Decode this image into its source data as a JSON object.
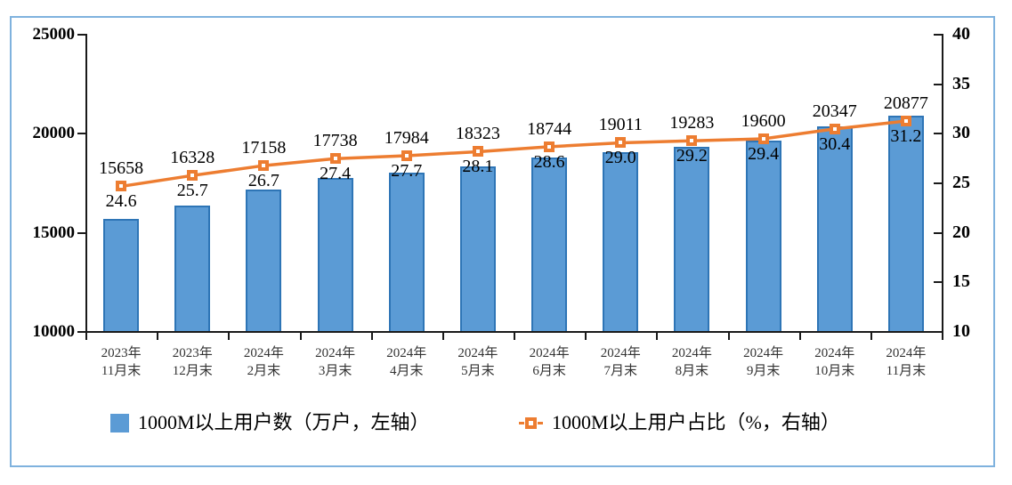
{
  "frame": {
    "border_color": "#7FB2DE",
    "background": "#ffffff"
  },
  "chart_data": {
    "type": "bar+line",
    "title": "",
    "categories": [
      [
        "2023年",
        "11月末"
      ],
      [
        "2023年",
        "12月末"
      ],
      [
        "2024年",
        "2月末"
      ],
      [
        "2024年",
        "3月末"
      ],
      [
        "2024年",
        "4月末"
      ],
      [
        "2024年",
        "5月末"
      ],
      [
        "2024年",
        "6月末"
      ],
      [
        "2024年",
        "7月末"
      ],
      [
        "2024年",
        "8月末"
      ],
      [
        "2024年",
        "9月末"
      ],
      [
        "2024年",
        "10月末"
      ],
      [
        "2024年",
        "11月末"
      ]
    ],
    "series": [
      {
        "name": "1000M以上用户数（万户，左轴）",
        "type": "bar",
        "axis": "left",
        "values": [
          15658,
          16328,
          17158,
          17738,
          17984,
          18323,
          18744,
          19011,
          19283,
          19600,
          20347,
          20877
        ],
        "labels": [
          "15658",
          "16328",
          "17158",
          "17738",
          "17984",
          "18323",
          "18744",
          "19011",
          "19283",
          "19600",
          "20347",
          "20877"
        ],
        "color": "#5B9BD5",
        "border_color": "#2E75B6"
      },
      {
        "name": "1000M以上用户占比（%，右轴）",
        "type": "line",
        "axis": "right",
        "values": [
          24.6,
          25.7,
          26.7,
          27.4,
          27.7,
          28.1,
          28.6,
          29.0,
          29.2,
          29.4,
          30.4,
          31.2
        ],
        "labels": [
          "24.6",
          "25.7",
          "26.7",
          "27.4",
          "27.7",
          "28.1",
          "28.6",
          "29.0",
          "29.2",
          "29.4",
          "30.4",
          "31.2"
        ],
        "color": "#ED7D31"
      }
    ],
    "left_axis": {
      "min": 10000,
      "max": 25000,
      "step": 5000,
      "tick_labels": [
        "10000",
        "15000",
        "20000",
        "25000"
      ]
    },
    "right_axis": {
      "min": 10,
      "max": 40,
      "step": 5,
      "tick_labels": [
        "10",
        "15",
        "20",
        "25",
        "30",
        "35",
        "40"
      ]
    },
    "grid": false,
    "legend_position": "bottom"
  }
}
